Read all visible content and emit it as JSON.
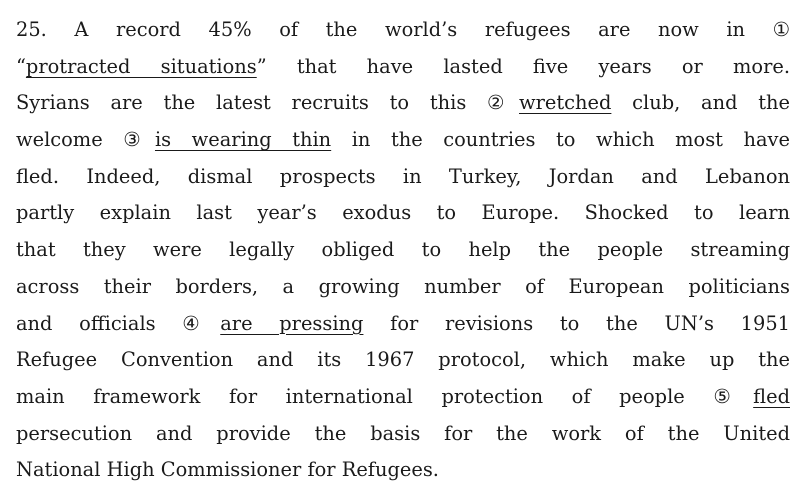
{
  "passage": {
    "lines": [
      [
        {
          "t": "25. A record 45% of the world’s refugees are now in ①"
        }
      ],
      [
        {
          "t": "“"
        },
        {
          "t": "protracted situations",
          "u": true
        },
        {
          "t": "” that have lasted five years or more."
        }
      ],
      [
        {
          "t": "Syrians are the latest recruits to this ②"
        },
        {
          "t": "wretched",
          "u": true
        },
        {
          "t": " club, and the"
        }
      ],
      [
        {
          "t": "welcome ③"
        },
        {
          "t": "is wearing thin",
          "u": true
        },
        {
          "t": " in the countries to which most have"
        }
      ],
      [
        {
          "t": "fled. Indeed, dismal prospects in Turkey, Jordan and Lebanon"
        }
      ],
      [
        {
          "t": "partly explain last year’s exodus to Europe. Shocked to learn"
        }
      ],
      [
        {
          "t": "that they were legally obliged to help the people streaming"
        }
      ],
      [
        {
          "t": "across their borders, a growing number of European politicians"
        }
      ],
      [
        {
          "t": "and officials ④"
        },
        {
          "t": "are pressing",
          "u": true
        },
        {
          "t": " for revisions to the UN’s 1951"
        }
      ],
      [
        {
          "t": "Refugee Convention and its 1967 protocol, which make up the"
        }
      ],
      [
        {
          "t": "main framework for international protection of people ⑤"
        },
        {
          "t": "fled",
          "u": true
        }
      ],
      [
        {
          "t": "persecution and provide the basis for the work of the United"
        }
      ],
      [
        {
          "t": "National High Commissioner for Refugees."
        }
      ]
    ]
  }
}
